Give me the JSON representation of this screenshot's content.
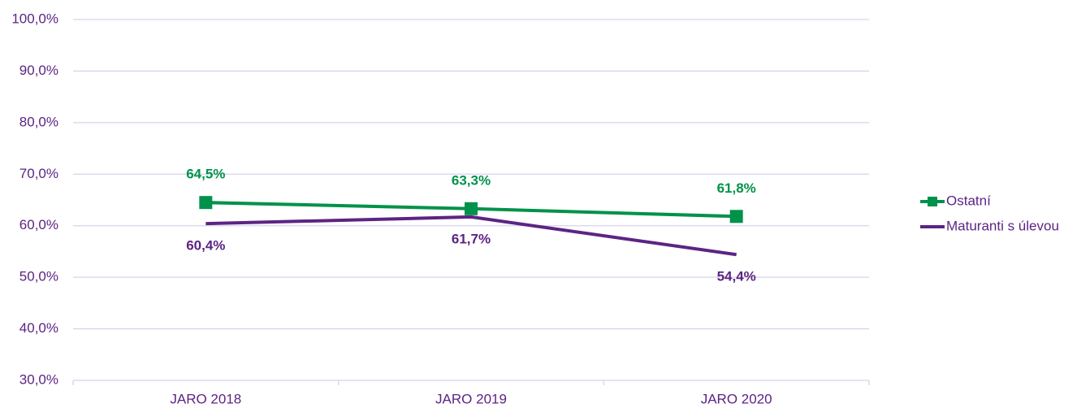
{
  "chart_data": {
    "type": "line",
    "categories": [
      "JARO 2018",
      "JARO 2019",
      "JARO 2020"
    ],
    "series": [
      {
        "name": "Ostatní",
        "color": "#00924a",
        "marker": "square",
        "values": [
          64.5,
          63.3,
          61.8
        ],
        "value_labels": [
          "64,5%",
          "63,3%",
          "61,8%"
        ]
      },
      {
        "name": "Maturanti s úlevou",
        "color": "#5c2483",
        "marker": "none",
        "values": [
          60.4,
          61.7,
          54.4
        ],
        "value_labels": [
          "60,4%",
          "61,7%",
          "54,4%"
        ]
      }
    ],
    "ylim": [
      30,
      100
    ],
    "yticks": [
      {
        "value": 30,
        "label": "30,0%"
      },
      {
        "value": 40,
        "label": "40,0%"
      },
      {
        "value": 50,
        "label": "50,0%"
      },
      {
        "value": 60,
        "label": "60,0%"
      },
      {
        "value": 70,
        "label": "70,0%"
      },
      {
        "value": 80,
        "label": "80,0%"
      },
      {
        "value": 90,
        "label": "90,0%"
      },
      {
        "value": 100,
        "label": "100,0%"
      }
    ],
    "grid": true,
    "legend": "right"
  }
}
